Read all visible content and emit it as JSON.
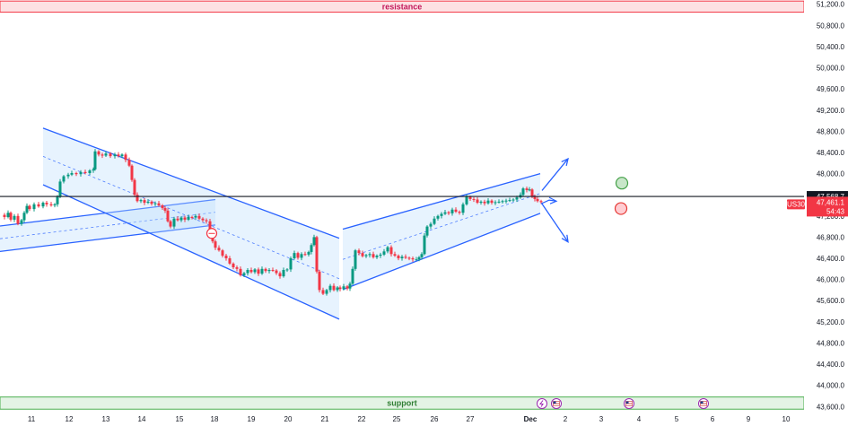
{
  "chart_data": {
    "type": "candlestick",
    "symbol": "US30",
    "y_axis": {
      "ticks": [
        "43,600.0",
        "44,000.0",
        "44,400.0",
        "44,800.0",
        "45,200.0",
        "45,600.0",
        "46,000.0",
        "46,400.0",
        "46,800.0",
        "47,200.0",
        "47,600.0",
        "48,000.0",
        "48,400.0",
        "48,800.0",
        "49,200.0",
        "49,600.0",
        "50,000.0",
        "50,400.0",
        "50,800.0",
        "51,200.0"
      ],
      "range": [
        43540,
        51260
      ]
    },
    "x_axis": {
      "ticks": [
        "11",
        "12",
        "13",
        "14",
        "15",
        "18",
        "19",
        "20",
        "21",
        "22",
        "25",
        "26",
        "27",
        "Dec",
        "2",
        "3",
        "4",
        "5",
        "6",
        "9",
        "10"
      ]
    },
    "horizontal_line": {
      "value": 47568.7,
      "label": "47,568.7"
    },
    "current_price": {
      "value": 47461.1,
      "label": "47,461.1",
      "countdown": "54:43",
      "symbol": "US30"
    },
    "zones": [
      {
        "name": "resistance",
        "label": "resistance",
        "from": 51050,
        "to": 51260
      },
      {
        "name": "support",
        "label": "support",
        "from": 43550,
        "to": 43780
      }
    ],
    "price_path": [
      [
        0,
        47220
      ],
      [
        5,
        47180
      ],
      [
        9,
        47260
      ],
      [
        12,
        47130
      ],
      [
        16,
        47200
      ],
      [
        20,
        47050
      ],
      [
        24,
        47120
      ],
      [
        27,
        47260
      ],
      [
        30,
        47390
      ],
      [
        33,
        47330
      ],
      [
        38,
        47420
      ],
      [
        43,
        47380
      ],
      [
        48,
        47450
      ],
      [
        52,
        47420
      ],
      [
        57,
        47400
      ],
      [
        61,
        47420
      ],
      [
        64,
        47560
      ],
      [
        67,
        47850
      ],
      [
        71,
        47950
      ],
      [
        76,
        47980
      ],
      [
        80,
        48010
      ],
      [
        85,
        47990
      ],
      [
        90,
        48030
      ],
      [
        95,
        48010
      ],
      [
        100,
        48060
      ],
      [
        104,
        48080
      ],
      [
        106,
        48420
      ],
      [
        110,
        48360
      ],
      [
        114,
        48340
      ],
      [
        118,
        48380
      ],
      [
        123,
        48330
      ],
      [
        128,
        48360
      ],
      [
        132,
        48330
      ],
      [
        136,
        48360
      ],
      [
        140,
        48260
      ],
      [
        144,
        48150
      ],
      [
        147,
        47880
      ],
      [
        150,
        47600
      ],
      [
        153,
        47480
      ],
      [
        157,
        47500
      ],
      [
        161,
        47450
      ],
      [
        165,
        47470
      ],
      [
        169,
        47430
      ],
      [
        173,
        47440
      ],
      [
        177,
        47400
      ],
      [
        181,
        47350
      ],
      [
        184,
        47300
      ],
      [
        187,
        47100
      ],
      [
        190,
        47000
      ],
      [
        194,
        47150
      ],
      [
        198,
        47120
      ],
      [
        202,
        47170
      ],
      [
        206,
        47130
      ],
      [
        210,
        47180
      ],
      [
        214,
        47170
      ],
      [
        218,
        47200
      ],
      [
        222,
        47150
      ],
      [
        226,
        47120
      ],
      [
        230,
        47100
      ],
      [
        234,
        46950
      ],
      [
        237,
        46720
      ],
      [
        240,
        46600
      ],
      [
        244,
        46550
      ],
      [
        248,
        46450
      ],
      [
        252,
        46400
      ],
      [
        256,
        46300
      ],
      [
        260,
        46230
      ],
      [
        264,
        46200
      ],
      [
        268,
        46080
      ],
      [
        272,
        46120
      ],
      [
        276,
        46180
      ],
      [
        280,
        46140
      ],
      [
        284,
        46190
      ],
      [
        288,
        46110
      ],
      [
        292,
        46200
      ],
      [
        296,
        46160
      ],
      [
        300,
        46180
      ],
      [
        304,
        46170
      ],
      [
        308,
        46120
      ],
      [
        312,
        46060
      ],
      [
        316,
        46180
      ],
      [
        320,
        46190
      ],
      [
        324,
        46400
      ],
      [
        328,
        46500
      ],
      [
        332,
        46410
      ],
      [
        336,
        46480
      ],
      [
        340,
        46470
      ],
      [
        344,
        46520
      ],
      [
        347,
        46650
      ],
      [
        350,
        46800
      ],
      [
        353,
        46150
      ],
      [
        356,
        45800
      ],
      [
        360,
        45730
      ],
      [
        364,
        45800
      ],
      [
        368,
        45880
      ],
      [
        372,
        45800
      ],
      [
        376,
        45850
      ],
      [
        379,
        45820
      ],
      [
        383,
        45870
      ],
      [
        387,
        45830
      ],
      [
        390,
        45920
      ],
      [
        393,
        46200
      ],
      [
        396,
        46550
      ],
      [
        400,
        46500
      ],
      [
        404,
        46440
      ],
      [
        408,
        46460
      ],
      [
        412,
        46480
      ],
      [
        416,
        46420
      ],
      [
        420,
        46450
      ],
      [
        424,
        46470
      ],
      [
        428,
        46530
      ],
      [
        432,
        46610
      ],
      [
        436,
        46480
      ],
      [
        440,
        46450
      ],
      [
        444,
        46400
      ],
      [
        448,
        46430
      ],
      [
        452,
        46410
      ],
      [
        456,
        46400
      ],
      [
        460,
        46380
      ],
      [
        464,
        46380
      ],
      [
        467,
        46420
      ],
      [
        470,
        46480
      ],
      [
        473,
        46830
      ],
      [
        476,
        47000
      ],
      [
        480,
        47050
      ],
      [
        484,
        47150
      ],
      [
        488,
        47200
      ],
      [
        492,
        47240
      ],
      [
        496,
        47270
      ],
      [
        500,
        47250
      ],
      [
        504,
        47320
      ],
      [
        508,
        47280
      ],
      [
        512,
        47260
      ],
      [
        516,
        47420
      ],
      [
        520,
        47560
      ],
      [
        524,
        47520
      ],
      [
        528,
        47510
      ],
      [
        532,
        47450
      ],
      [
        536,
        47470
      ],
      [
        540,
        47440
      ],
      [
        544,
        47490
      ],
      [
        548,
        47450
      ],
      [
        552,
        47460
      ],
      [
        556,
        47470
      ],
      [
        560,
        47480
      ],
      [
        564,
        47490
      ],
      [
        568,
        47500
      ],
      [
        572,
        47510
      ],
      [
        576,
        47550
      ],
      [
        580,
        47600
      ],
      [
        583,
        47720
      ],
      [
        587,
        47690
      ],
      [
        590,
        47700
      ],
      [
        593,
        47570
      ],
      [
        596,
        47520
      ],
      [
        599,
        47480
      ],
      [
        603,
        47461
      ]
    ],
    "annotations": {
      "channels": [
        {
          "name": "rising-channel-1",
          "lines": [
            [
              [
                0,
                47010
              ],
              [
                240,
                47510
              ]
            ],
            [
              [
                0,
                46530
              ],
              [
                240,
                47030
              ]
            ]
          ]
        },
        {
          "name": "falling-channel",
          "lines": [
            [
              [
                48,
                48860
              ],
              [
                378,
                46780
              ]
            ],
            [
              [
                48,
                47790
              ],
              [
                378,
                45250
              ]
            ]
          ]
        },
        {
          "name": "rising-channel-2",
          "lines": [
            [
              [
                382,
                46950
              ],
              [
                602,
                48000
              ]
            ],
            [
              [
                382,
                45810
              ],
              [
                602,
                47250
              ]
            ]
          ]
        }
      ],
      "markers": [
        {
          "name": "breakout-marker",
          "shape": "circle",
          "color": "#f23645",
          "x": 236,
          "value": 46870
        },
        {
          "name": "bullish-target-marker",
          "shape": "circle",
          "color": "#43a047",
          "x": 693,
          "value": 47820
        },
        {
          "name": "bearish-target-marker",
          "shape": "circle",
          "color": "#e53935",
          "x": 692,
          "value": 47340
        }
      ],
      "arrows": [
        {
          "name": "up-scenario-arrow",
          "from": [
            604,
            47680
          ],
          "to": [
            633,
            48280
          ]
        },
        {
          "name": "down-scenario-arrow",
          "from": [
            604,
            47430
          ],
          "to": [
            633,
            46710
          ]
        }
      ],
      "event_icons": [
        "lightning-icon",
        "us-flag-icon",
        "us-flag-icon",
        "us-flag-icon"
      ]
    },
    "colors": {
      "up": "#089981",
      "down": "#f23645",
      "channel": "#2962ff",
      "channel_fill": "#bbdefb",
      "resistance": "#f23645",
      "support": "#4caf50"
    }
  }
}
